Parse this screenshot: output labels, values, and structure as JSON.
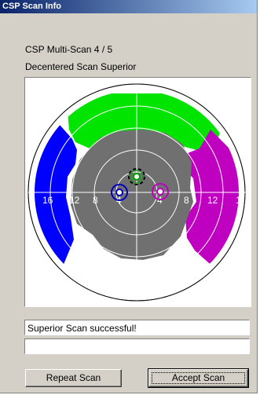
{
  "window": {
    "title": "CSP Scan Info"
  },
  "header": {
    "line1": "CSP Multi-Scan 4 / 5",
    "line2": "Decentered Scan Superior"
  },
  "scan_map": {
    "ring_labels_left": [
      "16",
      "12",
      "8",
      "4"
    ],
    "ring_labels_right": [
      "4",
      "8",
      "12",
      "1"
    ],
    "colors": {
      "superior": "#00e400",
      "temporal": "#0000ff",
      "nasal": "#c000c0",
      "central": "#707070",
      "marker_blue": "#0000c0",
      "marker_green": "#00a000",
      "marker_magenta": "#c000c0"
    }
  },
  "status": {
    "message": "Superior Scan successful!",
    "secondary": ""
  },
  "buttons": {
    "repeat": "Repeat Scan",
    "accept": "Accept Scan"
  }
}
